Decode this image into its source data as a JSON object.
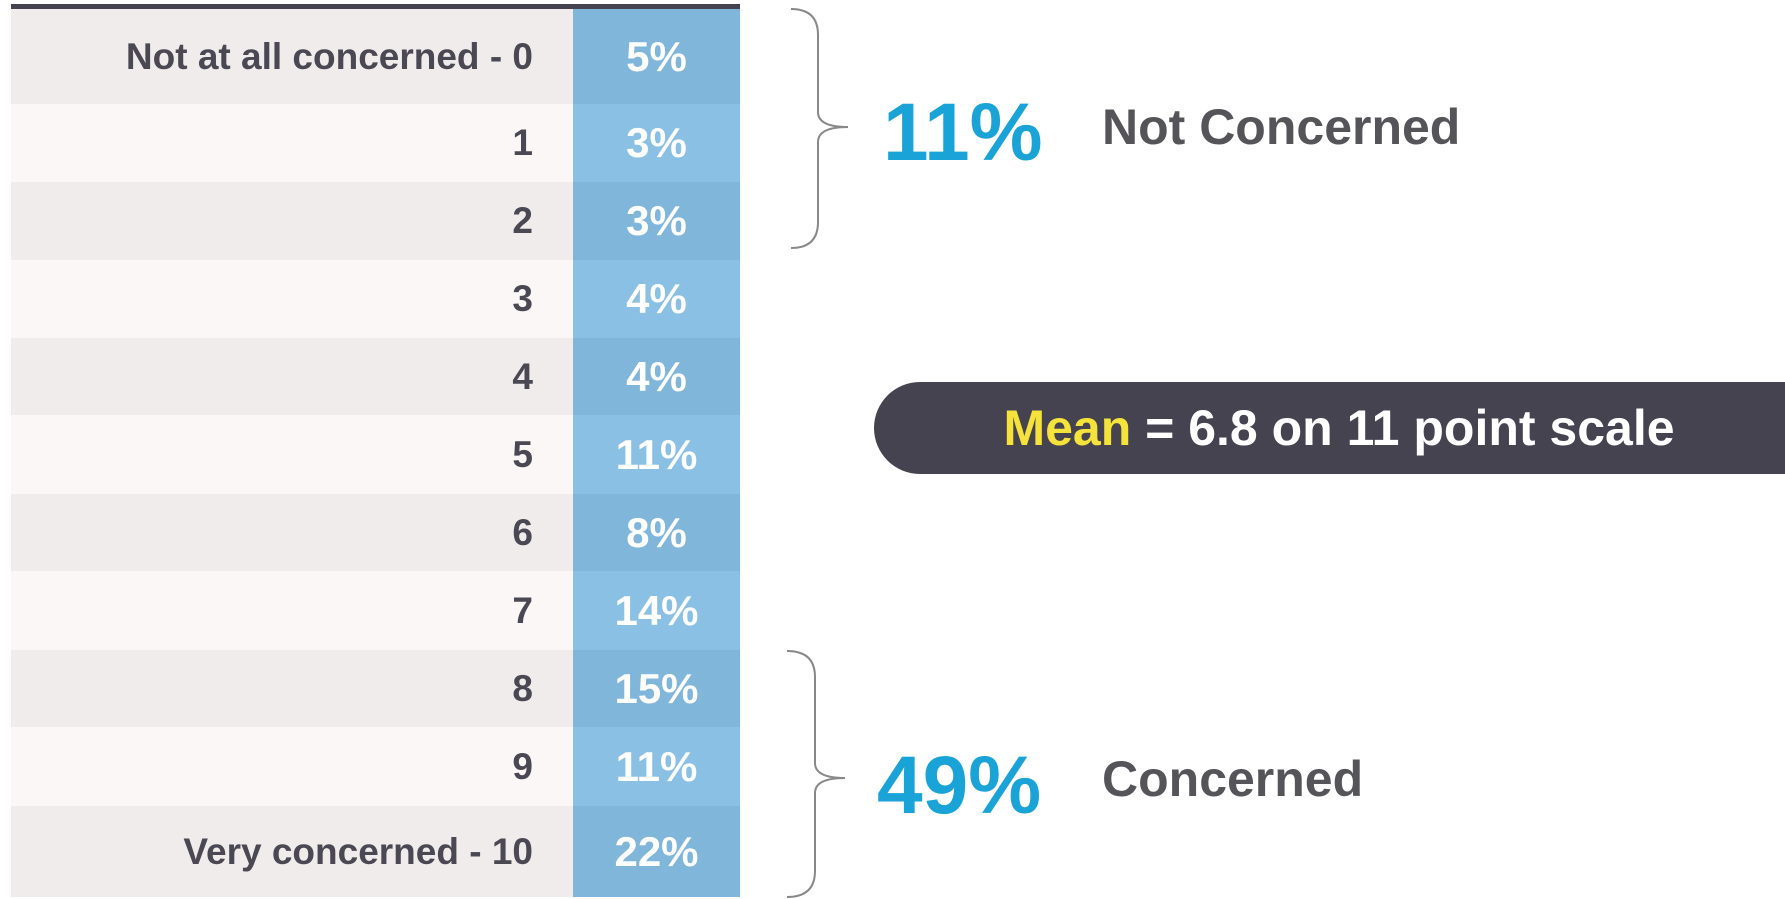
{
  "table": {
    "rows": [
      [
        "Not at all concerned - 0",
        "5%"
      ],
      [
        "1",
        "3%"
      ],
      [
        "2",
        "3%"
      ],
      [
        "3",
        "4%"
      ],
      [
        "4",
        "4%"
      ],
      [
        "5",
        "11%"
      ],
      [
        "6",
        "8%"
      ],
      [
        "7",
        "14%"
      ],
      [
        "8",
        "15%"
      ],
      [
        "9",
        "11%"
      ],
      [
        "Very concerned - 10",
        "22%"
      ]
    ]
  },
  "summary": [
    {
      "percent": "11%",
      "label": "Not Concerned"
    },
    {
      "percent": "49%",
      "label": "Concerned"
    }
  ],
  "mean": {
    "keyword": "Mean",
    "text": " = 6.8 on 11 point scale"
  }
}
